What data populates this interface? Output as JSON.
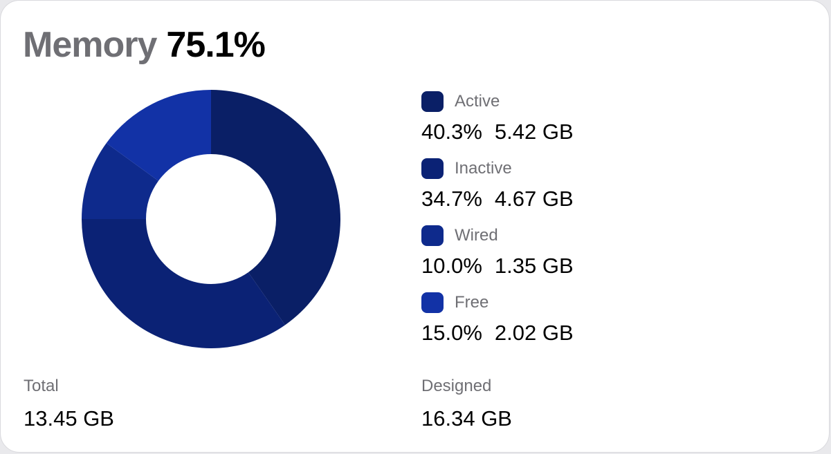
{
  "title": {
    "label": "Memory",
    "value": "75.1%"
  },
  "legend": [
    {
      "name": "Active",
      "percent": "40.3%",
      "size": "5.42 GB",
      "color": "#0a1f66"
    },
    {
      "name": "Inactive",
      "percent": "34.7%",
      "size": "4.67 GB",
      "color": "#0b2275"
    },
    {
      "name": "Wired",
      "percent": "10.0%",
      "size": "1.35 GB",
      "color": "#0e2a8c"
    },
    {
      "name": "Free",
      "percent": "15.0%",
      "size": "2.02 GB",
      "color": "#1232a6"
    }
  ],
  "total": {
    "label": "Total",
    "value": "13.45 GB"
  },
  "designed": {
    "label": "Designed",
    "value": "16.34 GB"
  },
  "chart_data": {
    "type": "pie",
    "variant": "donut",
    "categories": [
      "Active",
      "Inactive",
      "Wired",
      "Free"
    ],
    "values": [
      40.3,
      34.7,
      10.0,
      15.0
    ],
    "colors": [
      "#0a1f66",
      "#0b2275",
      "#0e2a8c",
      "#1232a6"
    ]
  }
}
